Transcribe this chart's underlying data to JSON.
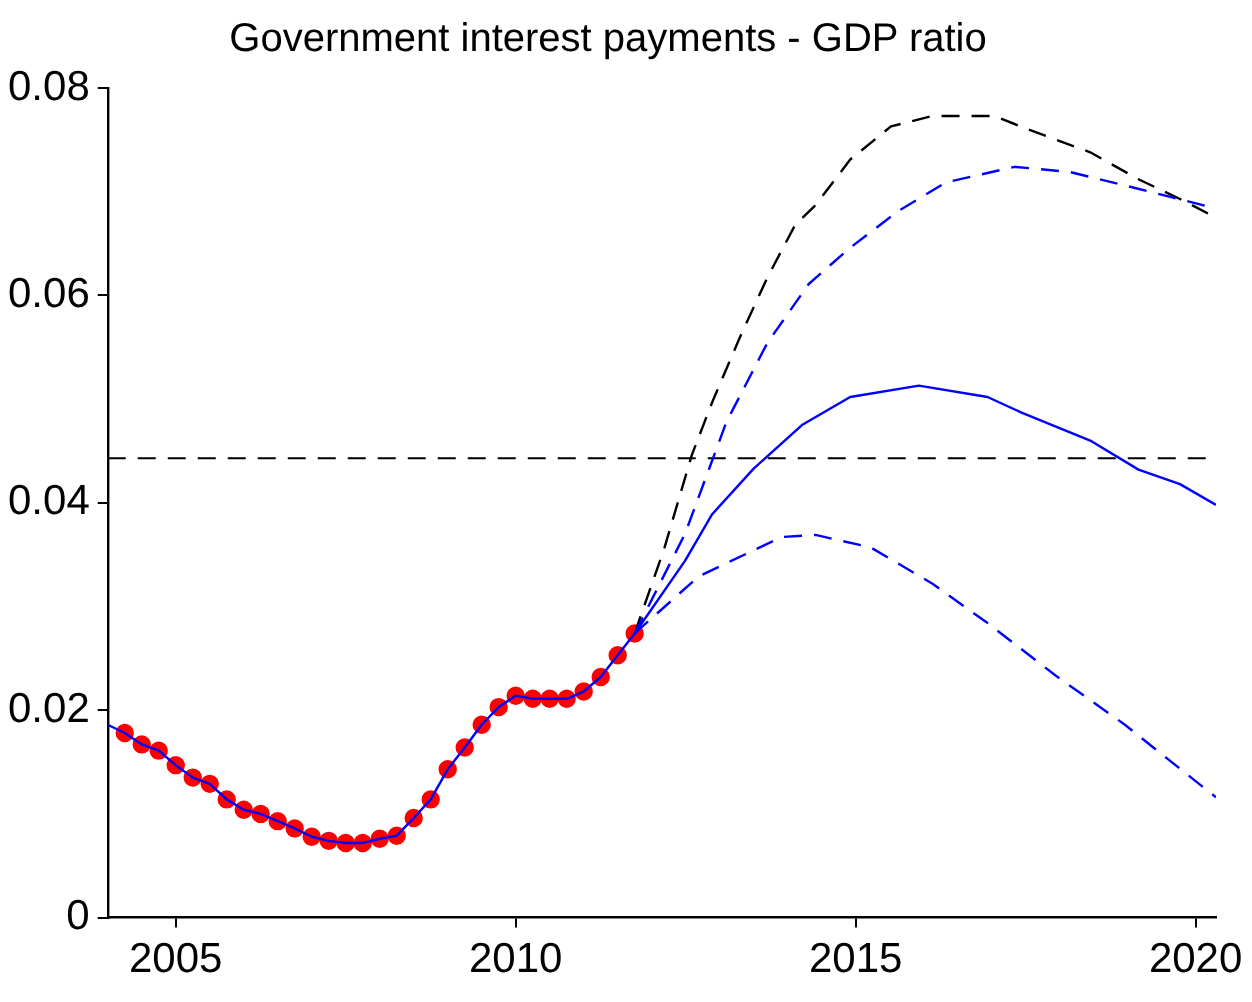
{
  "chart_data": {
    "type": "line",
    "title": "Government interest payments - GDP ratio",
    "xlim": [
      2004,
      2020.3
    ],
    "xticks": [
      2005,
      2010,
      2015,
      2020
    ],
    "ylim": [
      0,
      0.08
    ],
    "yticks": [
      0,
      0.02,
      0.04,
      0.06,
      0.08
    ],
    "grid": false,
    "legend": false,
    "ref_lines": [
      {
        "axis": "y",
        "value": 0.0443,
        "color": "#000000",
        "line_style": "dashed"
      }
    ],
    "series": [
      {
        "type": "line",
        "color": "#0000ff",
        "line_style": "solid",
        "marker": "none",
        "x": [
          2004,
          2004.25,
          2004.5,
          2004.75,
          2005,
          2005.25,
          2005.5,
          2005.75,
          2006,
          2006.25,
          2006.5,
          2006.75,
          2007,
          2007.25,
          2007.5,
          2007.75,
          2008,
          2008.25,
          2008.5,
          2008.75,
          2009,
          2009.25,
          2009.5,
          2009.75,
          2010,
          2010.25,
          2010.5,
          2010.75,
          2011,
          2011.25,
          2011.5,
          2011.75,
          2012.49,
          2012.89,
          2013.5,
          2014.21,
          2014.92,
          2015.93,
          2016.94,
          2017.44,
          2018.45,
          2019.16,
          2019.77,
          2020.3
        ],
        "values": [
          0.0186,
          0.0178,
          0.0167,
          0.0161,
          0.0147,
          0.0135,
          0.0129,
          0.0114,
          0.0104,
          0.01,
          0.0093,
          0.0086,
          0.0078,
          0.0074,
          0.0072,
          0.0072,
          0.0076,
          0.0079,
          0.0096,
          0.0114,
          0.0143,
          0.0164,
          0.0186,
          0.0203,
          0.0214,
          0.0211,
          0.0211,
          0.0211,
          0.0218,
          0.0232,
          0.0253,
          0.0274,
          0.0344,
          0.0389,
          0.0433,
          0.0475,
          0.0502,
          0.0513,
          0.0502,
          0.0487,
          0.046,
          0.0432,
          0.0418,
          0.0398
        ]
      },
      {
        "type": "line",
        "color": "#0000ff",
        "line_style": "dashed",
        "marker": "none",
        "x": [
          2011.75,
          2012.69,
          2013.91,
          2014.41,
          2015.22,
          2016.13,
          2016.94,
          2017.95,
          2018.96,
          2019.57,
          2020.3
        ],
        "values": [
          0.0274,
          0.0329,
          0.0367,
          0.0369,
          0.0357,
          0.0322,
          0.0284,
          0.0233,
          0.0186,
          0.0154,
          0.0116
        ]
      },
      {
        "type": "line",
        "color": "#0000ff",
        "line_style": "dashed",
        "marker": "none",
        "x": [
          2011.75,
          2012.49,
          2013.1,
          2013.7,
          2014.31,
          2014.92,
          2015.62,
          2016.33,
          2017.34,
          2018.15,
          2018.96,
          2019.57,
          2020.17,
          2020.3
        ],
        "values": [
          0.0274,
          0.037,
          0.0478,
          0.0554,
          0.0611,
          0.0646,
          0.0681,
          0.0709,
          0.0724,
          0.0719,
          0.0706,
          0.0696,
          0.0686,
          0.0684
        ]
      },
      {
        "type": "line",
        "color": "#000000",
        "line_style": "dashed",
        "marker": "none",
        "x": [
          2011.75,
          2012.19,
          2012.59,
          2012.89,
          2013.3,
          2013.7,
          2014.11,
          2014.41,
          2014.92,
          2015.52,
          2016.13,
          2017.04,
          2017.54,
          2018.45,
          2019.16,
          2019.77,
          2020.3
        ],
        "values": [
          0.0274,
          0.0357,
          0.0446,
          0.0497,
          0.056,
          0.0617,
          0.0668,
          0.0687,
          0.0731,
          0.0763,
          0.0773,
          0.0773,
          0.076,
          0.0738,
          0.0712,
          0.0693,
          0.0675
        ]
      },
      {
        "type": "scatter",
        "color": "#ff0000",
        "marker": "circle",
        "x": [
          2004.25,
          2004.5,
          2004.75,
          2005,
          2005.25,
          2005.5,
          2005.75,
          2006,
          2006.25,
          2006.5,
          2006.75,
          2007,
          2007.25,
          2007.5,
          2007.75,
          2008,
          2008.25,
          2008.5,
          2008.75,
          2009,
          2009.25,
          2009.5,
          2009.75,
          2010,
          2010.25,
          2010.5,
          2010.75,
          2011,
          2011.25,
          2011.5,
          2011.75
        ],
        "values": [
          0.0178,
          0.0167,
          0.0161,
          0.0147,
          0.0135,
          0.0129,
          0.0114,
          0.0104,
          0.01,
          0.0093,
          0.0086,
          0.0078,
          0.0074,
          0.0072,
          0.0072,
          0.0076,
          0.0079,
          0.0096,
          0.0114,
          0.0143,
          0.0164,
          0.0186,
          0.0203,
          0.0214,
          0.0211,
          0.0211,
          0.0211,
          0.0218,
          0.0232,
          0.0253,
          0.0274
        ]
      }
    ]
  }
}
